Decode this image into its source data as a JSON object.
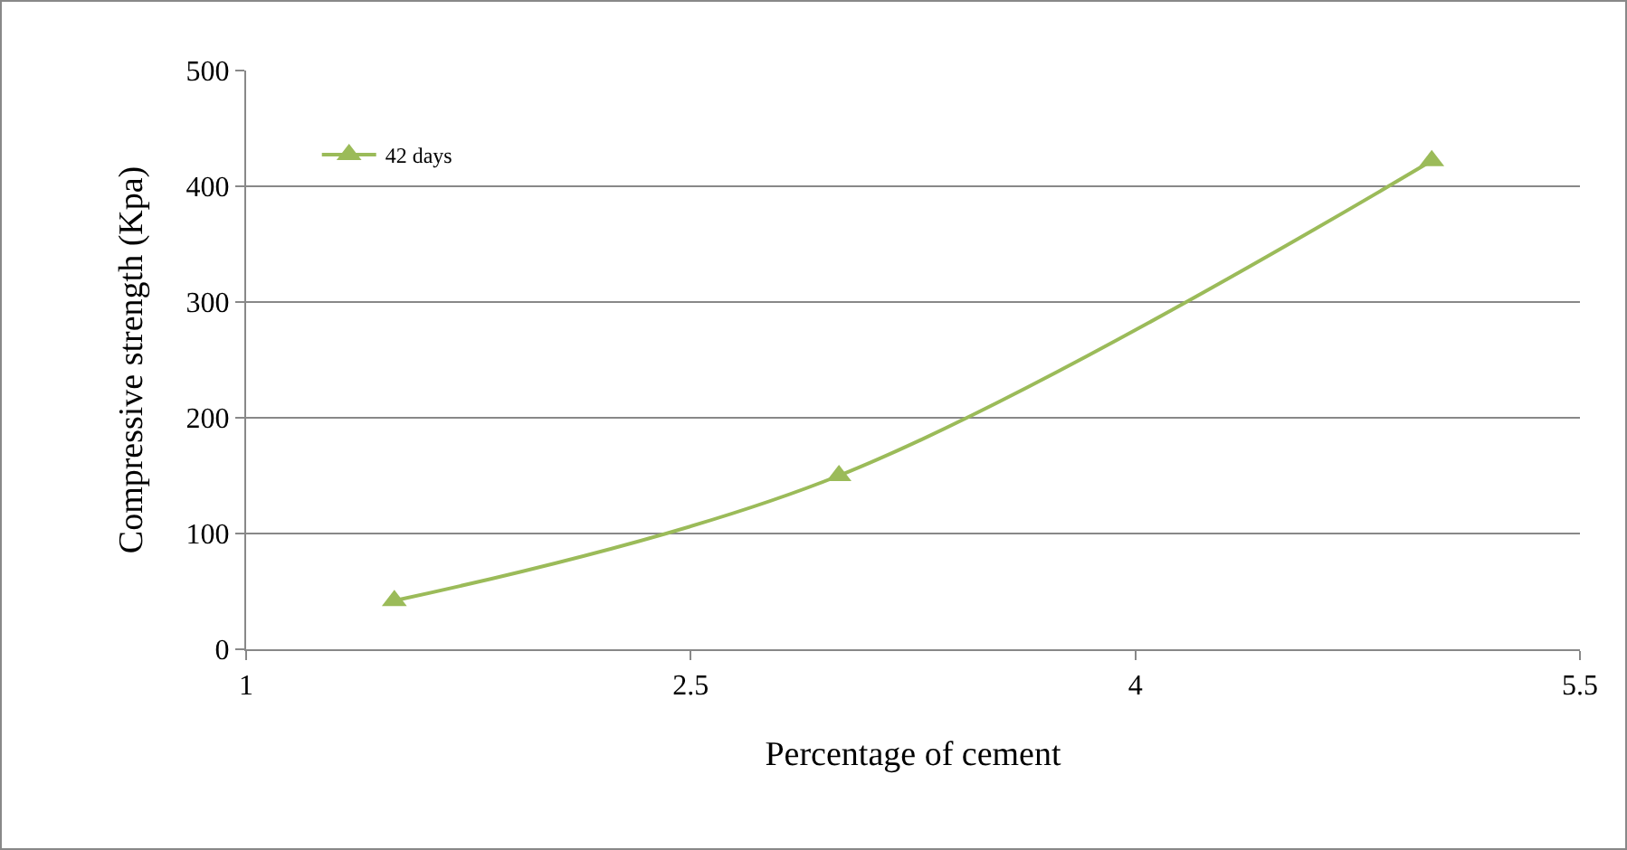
{
  "chart_data": {
    "type": "line",
    "xlabel": "Percentage of cement",
    "ylabel": "Compressive strength (Kpa)",
    "x": [
      1.5,
      3,
      5
    ],
    "series": [
      {
        "name": "42 days",
        "color": "#9bbb59",
        "values": [
          42,
          150,
          422
        ]
      }
    ],
    "xlim": [
      1,
      5.5
    ],
    "xticks": [
      1,
      2.5,
      4,
      5.5
    ],
    "ylim": [
      0,
      500
    ],
    "yticks": [
      0,
      100,
      200,
      300,
      400,
      500
    ],
    "grid": "y",
    "legend": "top left",
    "marker": "triangle",
    "line_style": "solid"
  }
}
